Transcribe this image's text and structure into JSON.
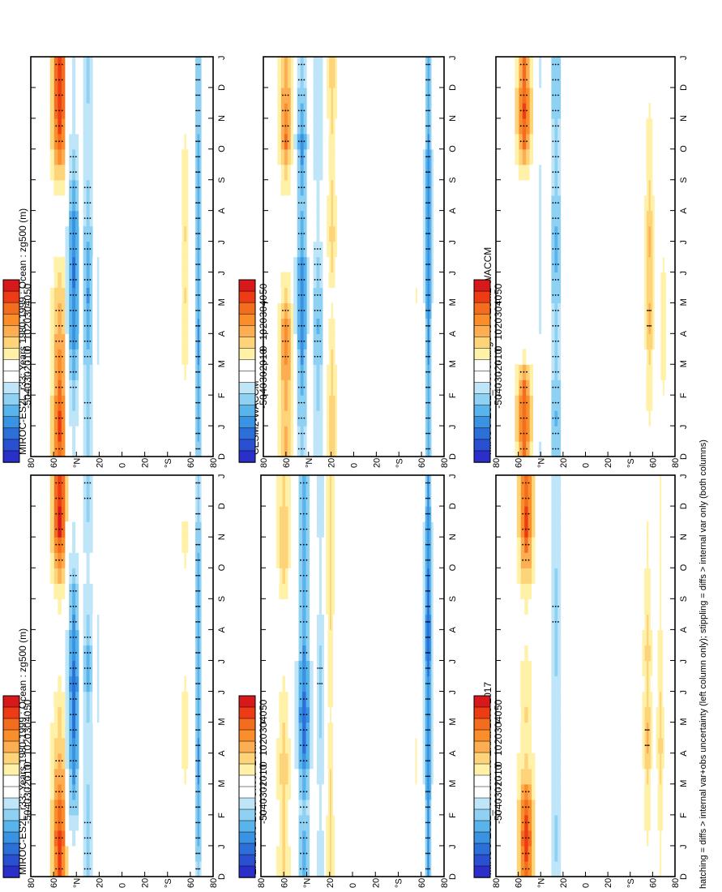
{
  "footer": {
    "note": "hatching = diffs > internal var+obs uncertainty (left column only); stippling = diffs > internal var only (both columns)"
  },
  "colorbar": {
    "labels": [
      "50",
      "40",
      "30",
      "20",
      "10",
      "0",
      "-10",
      "-20",
      "-30",
      "-40",
      "-50"
    ],
    "colors": [
      "#d7191c",
      "#ed3b16",
      "#f46d1e",
      "#f98e2b",
      "#fdae52",
      "#fdd47a",
      "#fff1a8",
      "#ffffff",
      "#ffffff",
      "#bfe6f8",
      "#8fd1f3",
      "#5ab4ec",
      "#3a93e2",
      "#2c6fd9",
      "#2a4fd1",
      "#2b2fc9"
    ]
  },
  "axes": {
    "month_ticks": [
      "D",
      "J",
      "F",
      "M",
      "A",
      "M",
      "J",
      "J",
      "A",
      "S",
      "O",
      "N",
      "D",
      "J"
    ],
    "lat_ticks": [
      "80",
      "60",
      "°N",
      "20",
      "0",
      "20",
      "°S",
      "60",
      "80"
    ]
  },
  "chart_data": [
    {
      "type": "heatmap",
      "title": "MIROC-ES2L_r33: Years 1980-1999 : Ocean : zg500 (m)",
      "stipple": true,
      "bands": [
        {
          "lat": 62,
          "w": 9,
          "v": [
            38,
            40,
            32,
            22,
            16,
            10,
            4,
            0,
            0,
            8,
            26,
            44,
            42
          ]
        },
        {
          "lat": 48,
          "w": 8,
          "v": [
            -6,
            -10,
            -22,
            -30,
            -36,
            -38,
            -40,
            -36,
            -30,
            -24,
            -16,
            -10,
            -8
          ]
        },
        {
          "lat": 34,
          "w": 8,
          "v": [
            -20,
            -20,
            -18,
            -16,
            -14,
            -18,
            -24,
            -24,
            -18,
            -14,
            -12,
            -16,
            -20
          ]
        },
        {
          "lat": 24,
          "w": 5,
          "v": [
            -8,
            -8,
            -6,
            -6,
            -8,
            -10,
            -12,
            -12,
            -10,
            -8,
            -6,
            -6,
            -8
          ]
        },
        {
          "lat": -62,
          "w": 5,
          "v": [
            -8,
            -4,
            0,
            4,
            6,
            6,
            4,
            0,
            0,
            2,
            4,
            6,
            -4
          ]
        },
        {
          "lat": -75,
          "w": 5,
          "v": [
            -20,
            -24,
            -28,
            -30,
            -30,
            -28,
            -28,
            -28,
            -28,
            -26,
            -24,
            -22,
            -20
          ]
        }
      ]
    },
    {
      "type": "heatmap",
      "title": "MIROC-ES2L_r33: Years 1980-1999 : Ocean : zg500 (m)",
      "stipple": true,
      "bands": [
        {
          "lat": 62,
          "w": 9,
          "v": [
            36,
            38,
            30,
            24,
            20,
            14,
            6,
            0,
            0,
            14,
            34,
            42,
            40
          ]
        },
        {
          "lat": 48,
          "w": 8,
          "v": [
            -10,
            -14,
            -20,
            -28,
            -34,
            -36,
            -38,
            -34,
            -28,
            -20,
            -14,
            -12,
            -10
          ]
        },
        {
          "lat": 34,
          "w": 8,
          "v": [
            -18,
            -20,
            -18,
            -22,
            -28,
            -30,
            -26,
            -22,
            -20,
            -16,
            -14,
            -16,
            -18
          ]
        },
        {
          "lat": 24,
          "w": 5,
          "v": [
            -6,
            -6,
            -8,
            -10,
            -10,
            -12,
            -10,
            -8,
            -6,
            -6,
            -6,
            -6,
            -6
          ]
        },
        {
          "lat": -62,
          "w": 5,
          "v": [
            -6,
            -2,
            2,
            6,
            6,
            10,
            8,
            10,
            8,
            6,
            4,
            2,
            -4
          ]
        },
        {
          "lat": -75,
          "w": 5,
          "v": [
            -22,
            -26,
            -28,
            -30,
            -30,
            -28,
            -28,
            -28,
            -28,
            -26,
            -24,
            -22,
            -22
          ]
        }
      ]
    },
    {
      "type": "heatmap",
      "title": "ERAI: 1979-2017 Uncer=100m",
      "stipple": true,
      "bands": [
        {
          "lat": 68,
          "w": 7,
          "v": [
            12,
            10,
            10,
            16,
            12,
            8,
            4,
            0,
            0,
            6,
            14,
            16,
            12
          ]
        },
        {
          "lat": 48,
          "w": 9,
          "v": [
            -24,
            -24,
            -20,
            -28,
            -38,
            -40,
            -36,
            -30,
            -26,
            -24,
            -24,
            -26,
            -24
          ]
        },
        {
          "lat": 32,
          "w": 6,
          "v": [
            -16,
            -14,
            -12,
            -14,
            -16,
            -18,
            -20,
            -18,
            -14,
            -12,
            -12,
            -14,
            -16
          ]
        },
        {
          "lat": 22,
          "w": 4,
          "v": [
            12,
            12,
            10,
            10,
            8,
            4,
            6,
            8,
            10,
            12,
            12,
            12,
            12
          ]
        },
        {
          "lat": -62,
          "w": 4,
          "v": [
            0,
            0,
            2,
            4,
            4,
            2,
            0,
            0,
            0,
            0,
            0,
            0,
            0
          ]
        },
        {
          "lat": -74,
          "w": 5,
          "v": [
            -30,
            -30,
            -30,
            -32,
            -32,
            -32,
            -36,
            -40,
            -40,
            -38,
            -36,
            -32,
            -30
          ]
        }
      ]
    },
    {
      "type": "heatmap",
      "title": "CESM2-WACCM",
      "stipple": true,
      "bands": [
        {
          "lat": 68,
          "w": 8,
          "v": [
            18,
            16,
            18,
            26,
            24,
            10,
            2,
            0,
            0,
            10,
            30,
            28,
            18
          ]
        },
        {
          "lat": 52,
          "w": 8,
          "v": [
            -20,
            -22,
            -24,
            -30,
            -32,
            -34,
            -32,
            -26,
            -22,
            -28,
            -32,
            -26,
            -20
          ]
        },
        {
          "lat": 36,
          "w": 8,
          "v": [
            -14,
            -16,
            -18,
            -22,
            -24,
            -22,
            -20,
            -12,
            -10,
            -14,
            -16,
            -16,
            -14
          ]
        },
        {
          "lat": 22,
          "w": 5,
          "v": [
            14,
            16,
            12,
            10,
            6,
            2,
            10,
            14,
            12,
            8,
            8,
            12,
            14
          ]
        },
        {
          "lat": -62,
          "w": 4,
          "v": [
            0,
            0,
            0,
            2,
            2,
            4,
            2,
            0,
            0,
            0,
            0,
            0,
            0
          ]
        },
        {
          "lat": -74,
          "w": 5,
          "v": [
            -24,
            -26,
            -28,
            -30,
            -30,
            -32,
            -34,
            -36,
            -36,
            -34,
            -30,
            -28,
            -24
          ]
        }
      ]
    },
    {
      "type": "heatmap",
      "title": "MIROC-ES2L_r33: Bias vs ERAI: 1979-2017",
      "stipple": true,
      "bands": [
        {
          "lat": 60,
          "w": 9,
          "v": [
            34,
            40,
            34,
            14,
            8,
            10,
            6,
            4,
            2,
            6,
            22,
            38,
            36
          ]
        },
        {
          "lat": 44,
          "w": 6,
          "v": [
            -6,
            -4,
            -4,
            -4,
            -6,
            -6,
            -6,
            -6,
            -6,
            -6,
            -4,
            -4,
            -6
          ]
        },
        {
          "lat": 30,
          "w": 8,
          "v": [
            -16,
            -18,
            -16,
            -14,
            -14,
            -14,
            -16,
            -18,
            -20,
            -18,
            -16,
            -16,
            -16
          ]
        },
        {
          "lat": 14,
          "w": 5,
          "v": [
            -8,
            -8,
            -8,
            -6,
            -4,
            -2,
            -4,
            -6,
            -6,
            -8,
            -8,
            -8,
            -8
          ]
        },
        {
          "lat": -62,
          "w": 5,
          "v": [
            -2,
            4,
            6,
            10,
            20,
            14,
            10,
            14,
            10,
            6,
            4,
            4,
            -2
          ]
        },
        {
          "lat": -75,
          "w": 4,
          "v": [
            4,
            4,
            8,
            10,
            14,
            12,
            8,
            6,
            4,
            4,
            4,
            4,
            4
          ]
        }
      ]
    },
    {
      "type": "heatmap",
      "title": "MIROC-ES2L_r33: Change vs CESM2-WACCM",
      "stipple": true,
      "bands": [
        {
          "lat": 62,
          "w": 9,
          "v": [
            30,
            36,
            30,
            4,
            0,
            -2,
            0,
            0,
            0,
            6,
            30,
            38,
            30
          ]
        },
        {
          "lat": 46,
          "w": 6,
          "v": [
            -10,
            -8,
            -6,
            -8,
            -10,
            -10,
            -10,
            -10,
            -10,
            -10,
            -8,
            -8,
            -10
          ]
        },
        {
          "lat": 30,
          "w": 8,
          "v": [
            -22,
            -24,
            -22,
            -20,
            -20,
            -22,
            -24,
            -24,
            -22,
            -20,
            -20,
            -22,
            -22
          ]
        },
        {
          "lat": 14,
          "w": 5,
          "v": [
            -8,
            -8,
            -8,
            -8,
            -6,
            -6,
            -8,
            -8,
            -8,
            -8,
            -8,
            -8,
            -8
          ]
        },
        {
          "lat": -64,
          "w": 5,
          "v": [
            -2,
            4,
            8,
            10,
            20,
            14,
            16,
            18,
            12,
            8,
            6,
            4,
            -2
          ]
        },
        {
          "lat": -78,
          "w": 4,
          "v": [
            2,
            2,
            4,
            6,
            8,
            6,
            4,
            2,
            2,
            2,
            2,
            2,
            2
          ]
        }
      ]
    }
  ]
}
